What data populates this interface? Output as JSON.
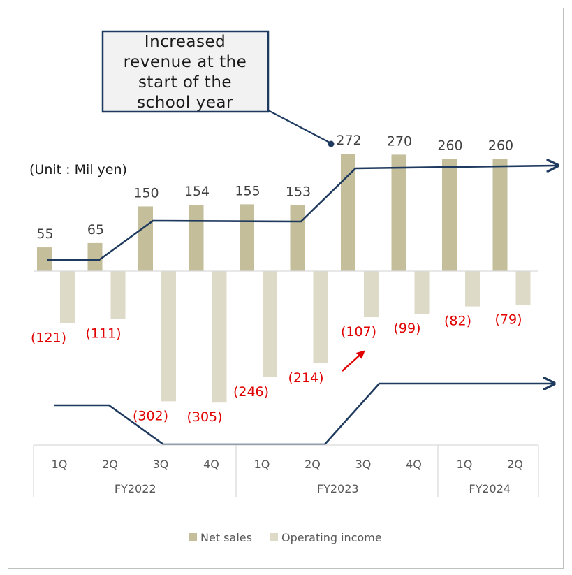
{
  "chart_data": {
    "type": "bar",
    "unit_label": "(Unit : Mil yen)",
    "categories": [
      "1Q",
      "2Q",
      "3Q",
      "4Q",
      "1Q",
      "2Q",
      "3Q",
      "4Q",
      "1Q",
      "2Q"
    ],
    "groups": [
      {
        "label": "FY2022",
        "span": 4
      },
      {
        "label": "FY2023",
        "span": 4
      },
      {
        "label": "FY2024",
        "span": 2
      }
    ],
    "series": [
      {
        "name": "Net sales",
        "color": "#c4be9a",
        "values": [
          55,
          65,
          150,
          154,
          155,
          153,
          272,
          270,
          260,
          260
        ],
        "labels": [
          "55",
          "65",
          "150",
          "154",
          "155",
          "153",
          "272",
          "270",
          "260",
          "260"
        ]
      },
      {
        "name": "Operating income",
        "color": "#dddac8",
        "values": [
          -121,
          -111,
          -302,
          -305,
          -246,
          -214,
          -107,
          -99,
          -82,
          -79
        ],
        "labels": [
          "(121)",
          "(111)",
          "(302)",
          "(305)",
          "(246)",
          "(214)",
          "(107)",
          "(99)",
          "(82)",
          "(79)"
        ]
      }
    ],
    "annotations": {
      "callout_text": [
        "Increased",
        "revenue at the",
        "start of the",
        "school year"
      ]
    },
    "colors": {
      "trend_line": "#1f3a5f",
      "negative_label": "#e00000",
      "highlight_arrow": "#e00000"
    },
    "legend_position": "bottom",
    "grid": false
  }
}
